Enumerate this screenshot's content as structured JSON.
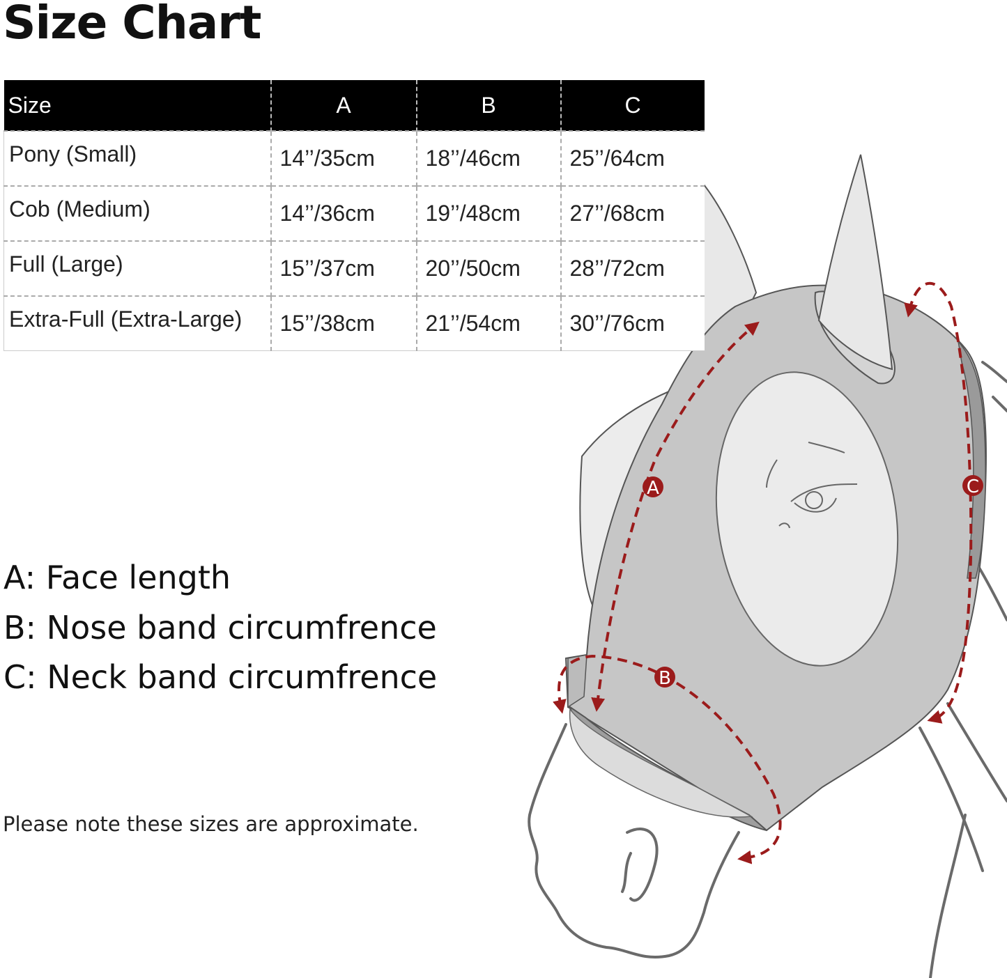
{
  "title": "Size Chart",
  "table": {
    "headers": [
      "Size",
      "A",
      "B",
      "C"
    ],
    "rows": [
      [
        "Pony (Small)",
        "14’’/35cm",
        "18’’/46cm",
        "25’’/64cm"
      ],
      [
        "Cob (Medium)",
        "14’’/36cm",
        "19’’/48cm",
        "27’’/68cm"
      ],
      [
        "Full (Large)",
        "15’’/37cm",
        "20’’/50cm",
        "28’’/72cm"
      ],
      [
        "Extra-Full (Extra-Large)",
        "15’’/38cm",
        "21’’/54cm",
        "30’’/76cm"
      ]
    ]
  },
  "legend": [
    "A: Face length",
    "B: Nose band circumfrence",
    "C: Neck band circumfrence"
  ],
  "note": "Please note these sizes are approximate.",
  "diagram": {
    "markers": [
      "A",
      "B",
      "C"
    ],
    "colors": {
      "measure": "#9b1b1b",
      "mask": "#c6c6c6",
      "panel": "#ebebeb",
      "outline": "#666666"
    }
  }
}
